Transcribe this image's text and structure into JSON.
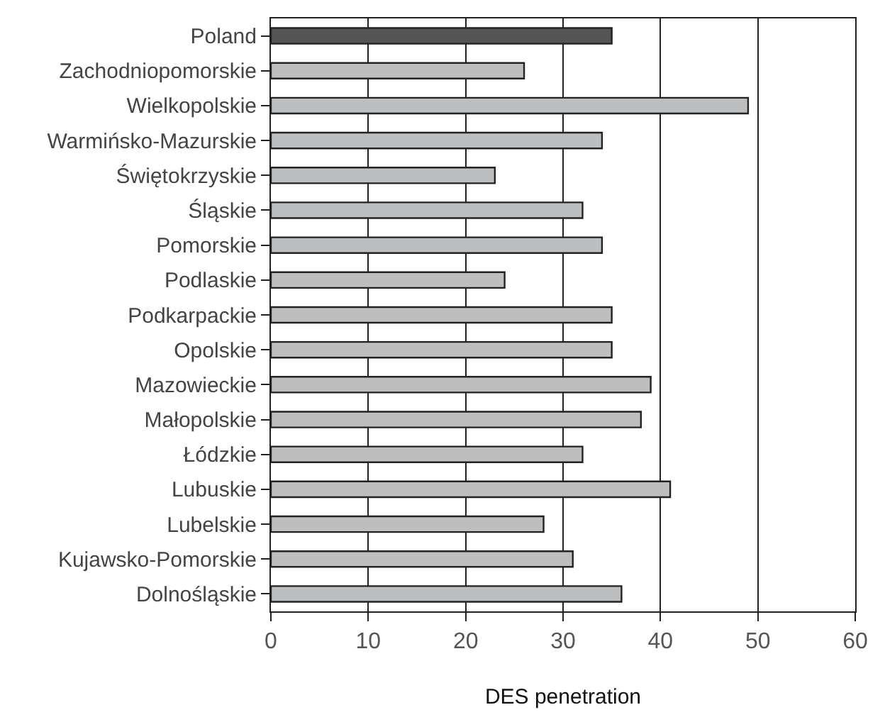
{
  "chart_data": {
    "type": "bar",
    "orientation": "horizontal",
    "xlabel": "DES penetration",
    "categories": [
      "Poland",
      "Zachodniopomorskie",
      "Wielkopolskie",
      "Warmińsko-Mazurskie",
      "Świętokrzyskie",
      "Śląskie",
      "Pomorskie",
      "Podlaskie",
      "Podkarpackie",
      "Opolskie",
      "Mazowieckie",
      "Małopolskie",
      "Łódzkie",
      "Lubuskie",
      "Lubelskie",
      "Kujawsko-Pomorskie",
      "Dolnośląskie"
    ],
    "values": [
      35,
      26,
      49,
      34,
      23,
      32,
      34,
      24,
      35,
      35,
      39,
      38,
      32,
      41,
      28,
      31,
      36
    ],
    "colors": [
      "#555557",
      "#bdbec0",
      "#bdbec0",
      "#bdbec0",
      "#bdbec0",
      "#bdbec0",
      "#bdbec0",
      "#bdbec0",
      "#bdbec0",
      "#bdbec0",
      "#bdbec0",
      "#bdbec0",
      "#bdbec0",
      "#bdbec0",
      "#bdbec0",
      "#bdbec0",
      "#bdbec0"
    ],
    "xlim": [
      0,
      60
    ],
    "xticks": [
      0,
      10,
      20,
      30,
      40,
      50,
      60
    ],
    "grid": "x",
    "legend": false
  }
}
